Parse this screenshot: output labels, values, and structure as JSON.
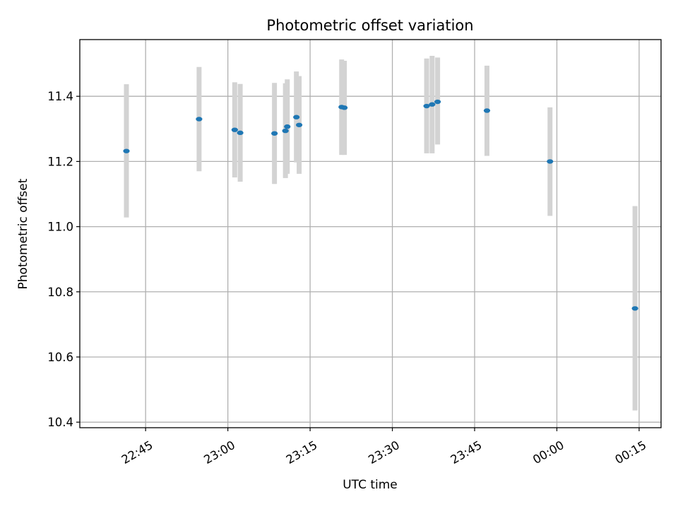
{
  "chart_data": {
    "type": "scatter",
    "title": "Photometric offset variation",
    "xlabel": "UTC time",
    "ylabel": "Photometric offset",
    "x_axis_type": "time",
    "x_start_day": "day 1",
    "xlim": [
      "22:33",
      "00:19 +1d"
    ],
    "ylim": [
      10.383,
      11.574
    ],
    "grid": true,
    "x_ticks": [
      "22:45",
      "23:00",
      "23:15",
      "23:30",
      "23:45",
      "00:00",
      "00:15"
    ],
    "y_ticks": [
      "10.4",
      "10.6",
      "10.8",
      "11.0",
      "11.2",
      "11.4"
    ],
    "colors": {
      "point": "#1f77b4",
      "errorbar": "#d3d3d3",
      "grid": "#b0b0b0"
    },
    "series": [
      {
        "points": [
          {
            "x": "22:41:30",
            "y": 11.232,
            "ylow": 11.028,
            "yhigh": 11.437
          },
          {
            "x": "22:54:45",
            "y": 11.33,
            "ylow": 11.17,
            "yhigh": 11.49
          },
          {
            "x": "23:01:15",
            "y": 11.297,
            "ylow": 11.151,
            "yhigh": 11.443
          },
          {
            "x": "23:02:15",
            "y": 11.288,
            "ylow": 11.138,
            "yhigh": 11.438
          },
          {
            "x": "23:08:30",
            "y": 11.286,
            "ylow": 11.131,
            "yhigh": 11.441
          },
          {
            "x": "23:10:30",
            "y": 11.294,
            "ylow": 11.149,
            "yhigh": 11.44
          },
          {
            "x": "23:10:50",
            "y": 11.307,
            "ylow": 11.162,
            "yhigh": 11.452
          },
          {
            "x": "23:12:30",
            "y": 11.336,
            "ylow": 11.197,
            "yhigh": 11.476
          },
          {
            "x": "23:13:00",
            "y": 11.312,
            "ylow": 11.162,
            "yhigh": 11.462
          },
          {
            "x": "23:20:45",
            "y": 11.367,
            "ylow": 11.22,
            "yhigh": 11.513
          },
          {
            "x": "23:21:15",
            "y": 11.365,
            "ylow": 11.22,
            "yhigh": 11.509
          },
          {
            "x": "23:36:15",
            "y": 11.37,
            "ylow": 11.225,
            "yhigh": 11.516
          },
          {
            "x": "23:37:15",
            "y": 11.375,
            "ylow": 11.225,
            "yhigh": 11.524
          },
          {
            "x": "23:38:15",
            "y": 11.383,
            "ylow": 11.252,
            "yhigh": 11.519
          },
          {
            "x": "23:47:15",
            "y": 11.356,
            "ylow": 11.217,
            "yhigh": 11.494
          },
          {
            "x": "23:58:45",
            "y": 11.2,
            "ylow": 11.033,
            "yhigh": 11.366
          },
          {
            "x": "00:14:15 +1d",
            "y": 10.749,
            "ylow": 10.436,
            "yhigh": 11.063
          }
        ]
      }
    ]
  }
}
